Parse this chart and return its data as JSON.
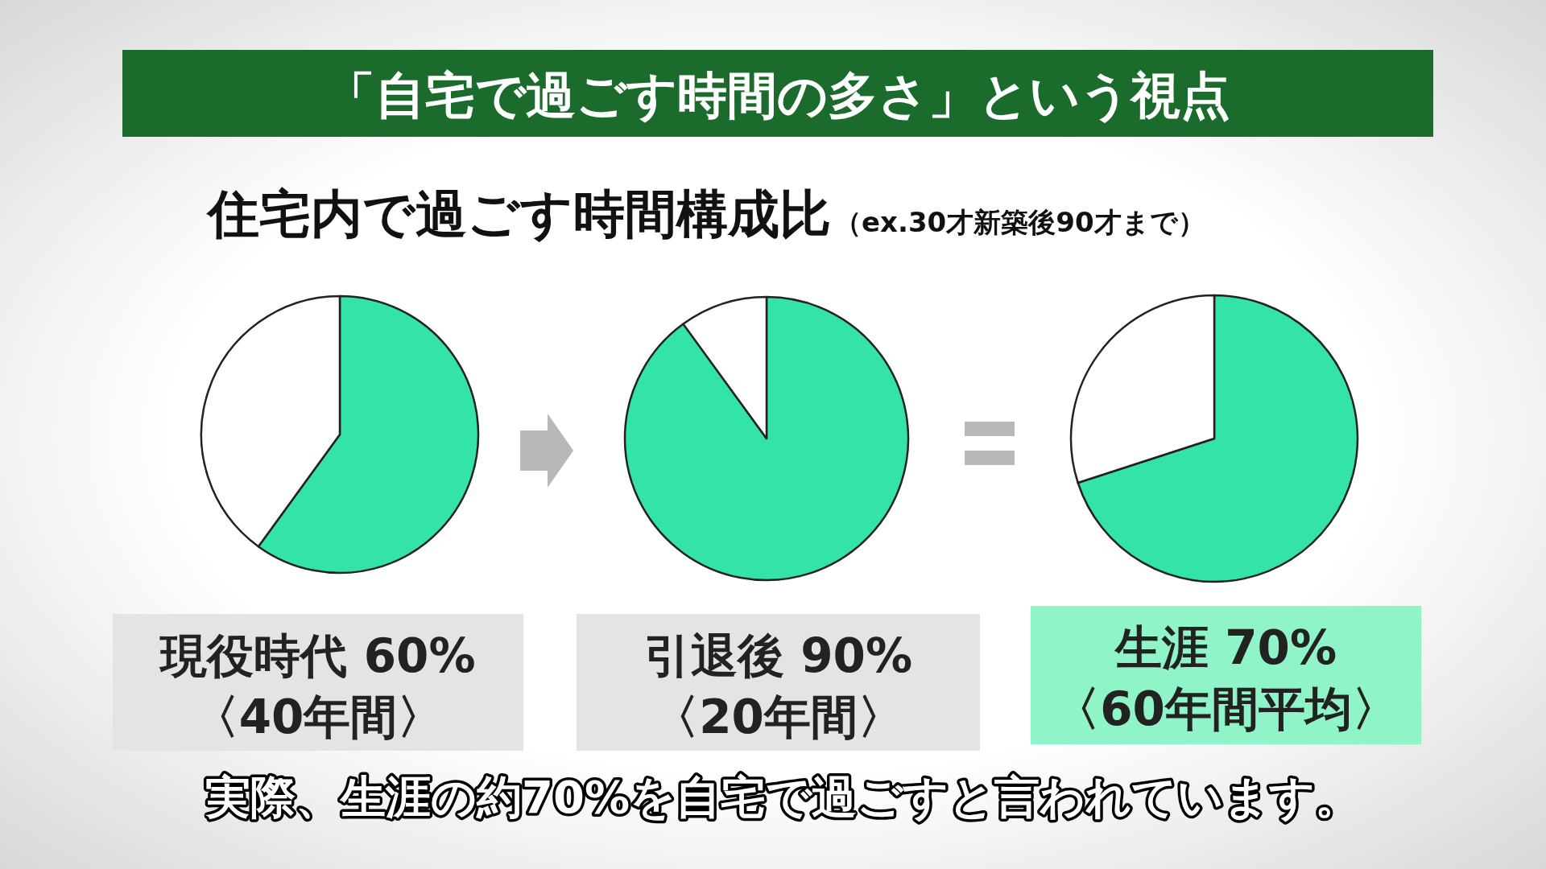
{
  "chart_data": [
    {
      "type": "other",
      "title": "「自宅で過ごす時間の多さ」という視点",
      "subtitle": "住宅内で過ごす時間構成比",
      "annotations": [
        "（ex.30才新築後90才まで）",
        "実際、生涯の約70%を自宅で過ごすと言われています。"
      ]
    },
    {
      "type": "pie",
      "title": "現役時代 60%",
      "subtitle": "〈40年間〉",
      "categories": [
        null,
        null
      ],
      "values": [
        60,
        40
      ],
      "colors": [
        "#33e3aa",
        "#ffffff"
      ]
    },
    {
      "type": "pie",
      "title": "引退後 90%",
      "subtitle": "〈20年間〉",
      "categories": [
        null,
        null
      ],
      "values": [
        90,
        10
      ],
      "colors": [
        "#33e3aa",
        "#ffffff"
      ]
    },
    {
      "type": "pie",
      "title": "生涯 70%",
      "subtitle": "〈60年間平均〉",
      "categories": [
        null,
        null
      ],
      "values": [
        70,
        30
      ],
      "colors": [
        "#33e3aa",
        "#ffffff"
      ]
    }
  ]
}
